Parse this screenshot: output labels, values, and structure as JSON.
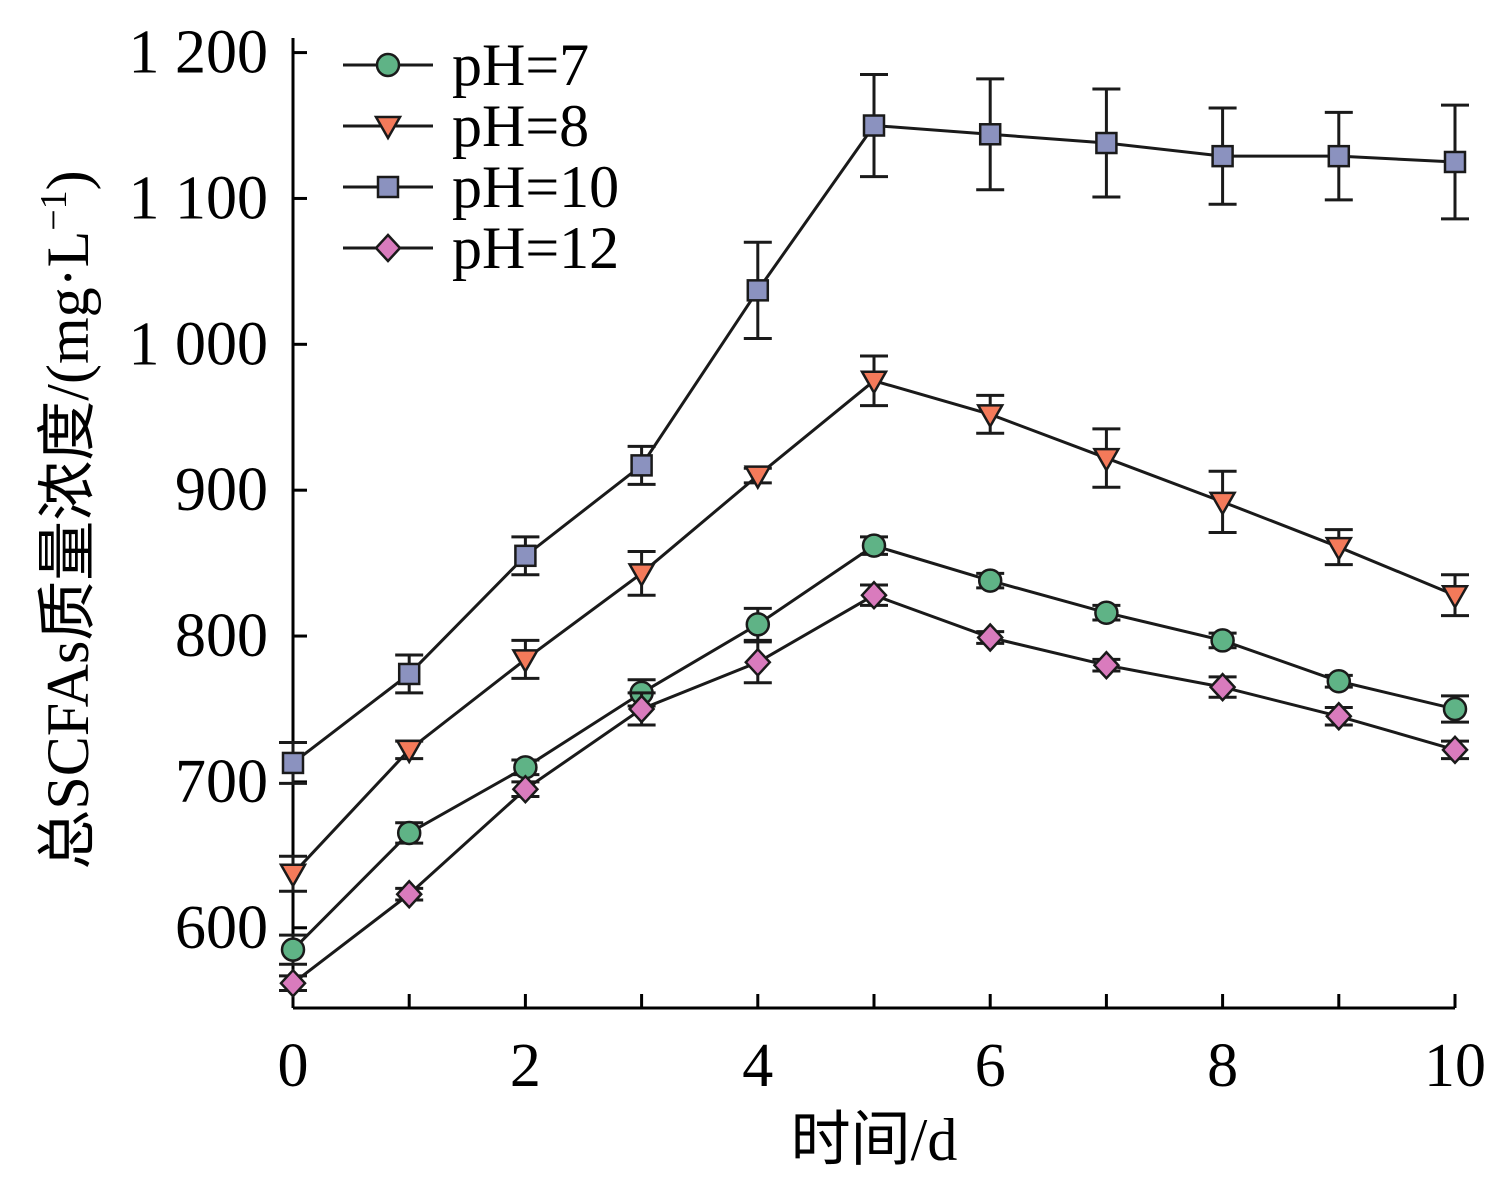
{
  "chart_data": {
    "type": "line",
    "title": "",
    "xlabel": "时间/d",
    "ylabel": "总SCFAs质量浓度/(mg·L",
    "ylabel_sup": "−1",
    "ylabel_close": ")",
    "xlim": [
      0,
      10
    ],
    "ylim": [
      545,
      1210
    ],
    "x_ticks": [
      0,
      1,
      2,
      3,
      4,
      5,
      6,
      7,
      8,
      9,
      10
    ],
    "x_tick_labels": [
      "0",
      "",
      "2",
      "",
      "4",
      "",
      "6",
      "",
      "8",
      "",
      "10"
    ],
    "y_ticks": [
      600,
      700,
      800,
      900,
      1000,
      1100,
      1200
    ],
    "y_tick_labels": [
      "600",
      "700",
      "800",
      "900",
      "1 000",
      "1 100",
      "1 200"
    ],
    "grid": false,
    "legend_position": "top-left",
    "x": [
      0,
      1,
      2,
      3,
      4,
      5,
      6,
      7,
      8,
      9,
      10
    ],
    "series": [
      {
        "name": "pH=7",
        "marker": "circle",
        "color": "#5fb386",
        "values": [
          585,
          665,
          710,
          761,
          808,
          862,
          838,
          816,
          797,
          769,
          750
        ],
        "errors": [
          10,
          7,
          5,
          9,
          11,
          6,
          5,
          5,
          5,
          4,
          9
        ]
      },
      {
        "name": "pH=8",
        "marker": "triangle-down",
        "color": "#f47a5a",
        "values": [
          637,
          722,
          784,
          843,
          910,
          975,
          952,
          922,
          892,
          861,
          828
        ],
        "errors": [
          12,
          6,
          13,
          15,
          5,
          17,
          13,
          20,
          21,
          12,
          14
        ]
      },
      {
        "name": "pH=10",
        "marker": "square",
        "color": "#8b92bf",
        "values": [
          713,
          774,
          855,
          917,
          1037,
          1150,
          1144,
          1138,
          1129,
          1129,
          1125
        ],
        "errors": [
          14,
          13,
          13,
          13,
          33,
          35,
          38,
          37,
          33,
          30,
          39
        ]
      },
      {
        "name": "pH=12",
        "marker": "diamond",
        "color": "#d97bbd",
        "values": [
          562,
          623,
          695,
          750,
          782,
          828,
          799,
          780,
          765,
          745,
          722
        ],
        "errors": [
          5,
          4,
          5,
          11,
          14,
          7,
          4,
          4,
          7,
          6,
          6
        ]
      }
    ]
  }
}
